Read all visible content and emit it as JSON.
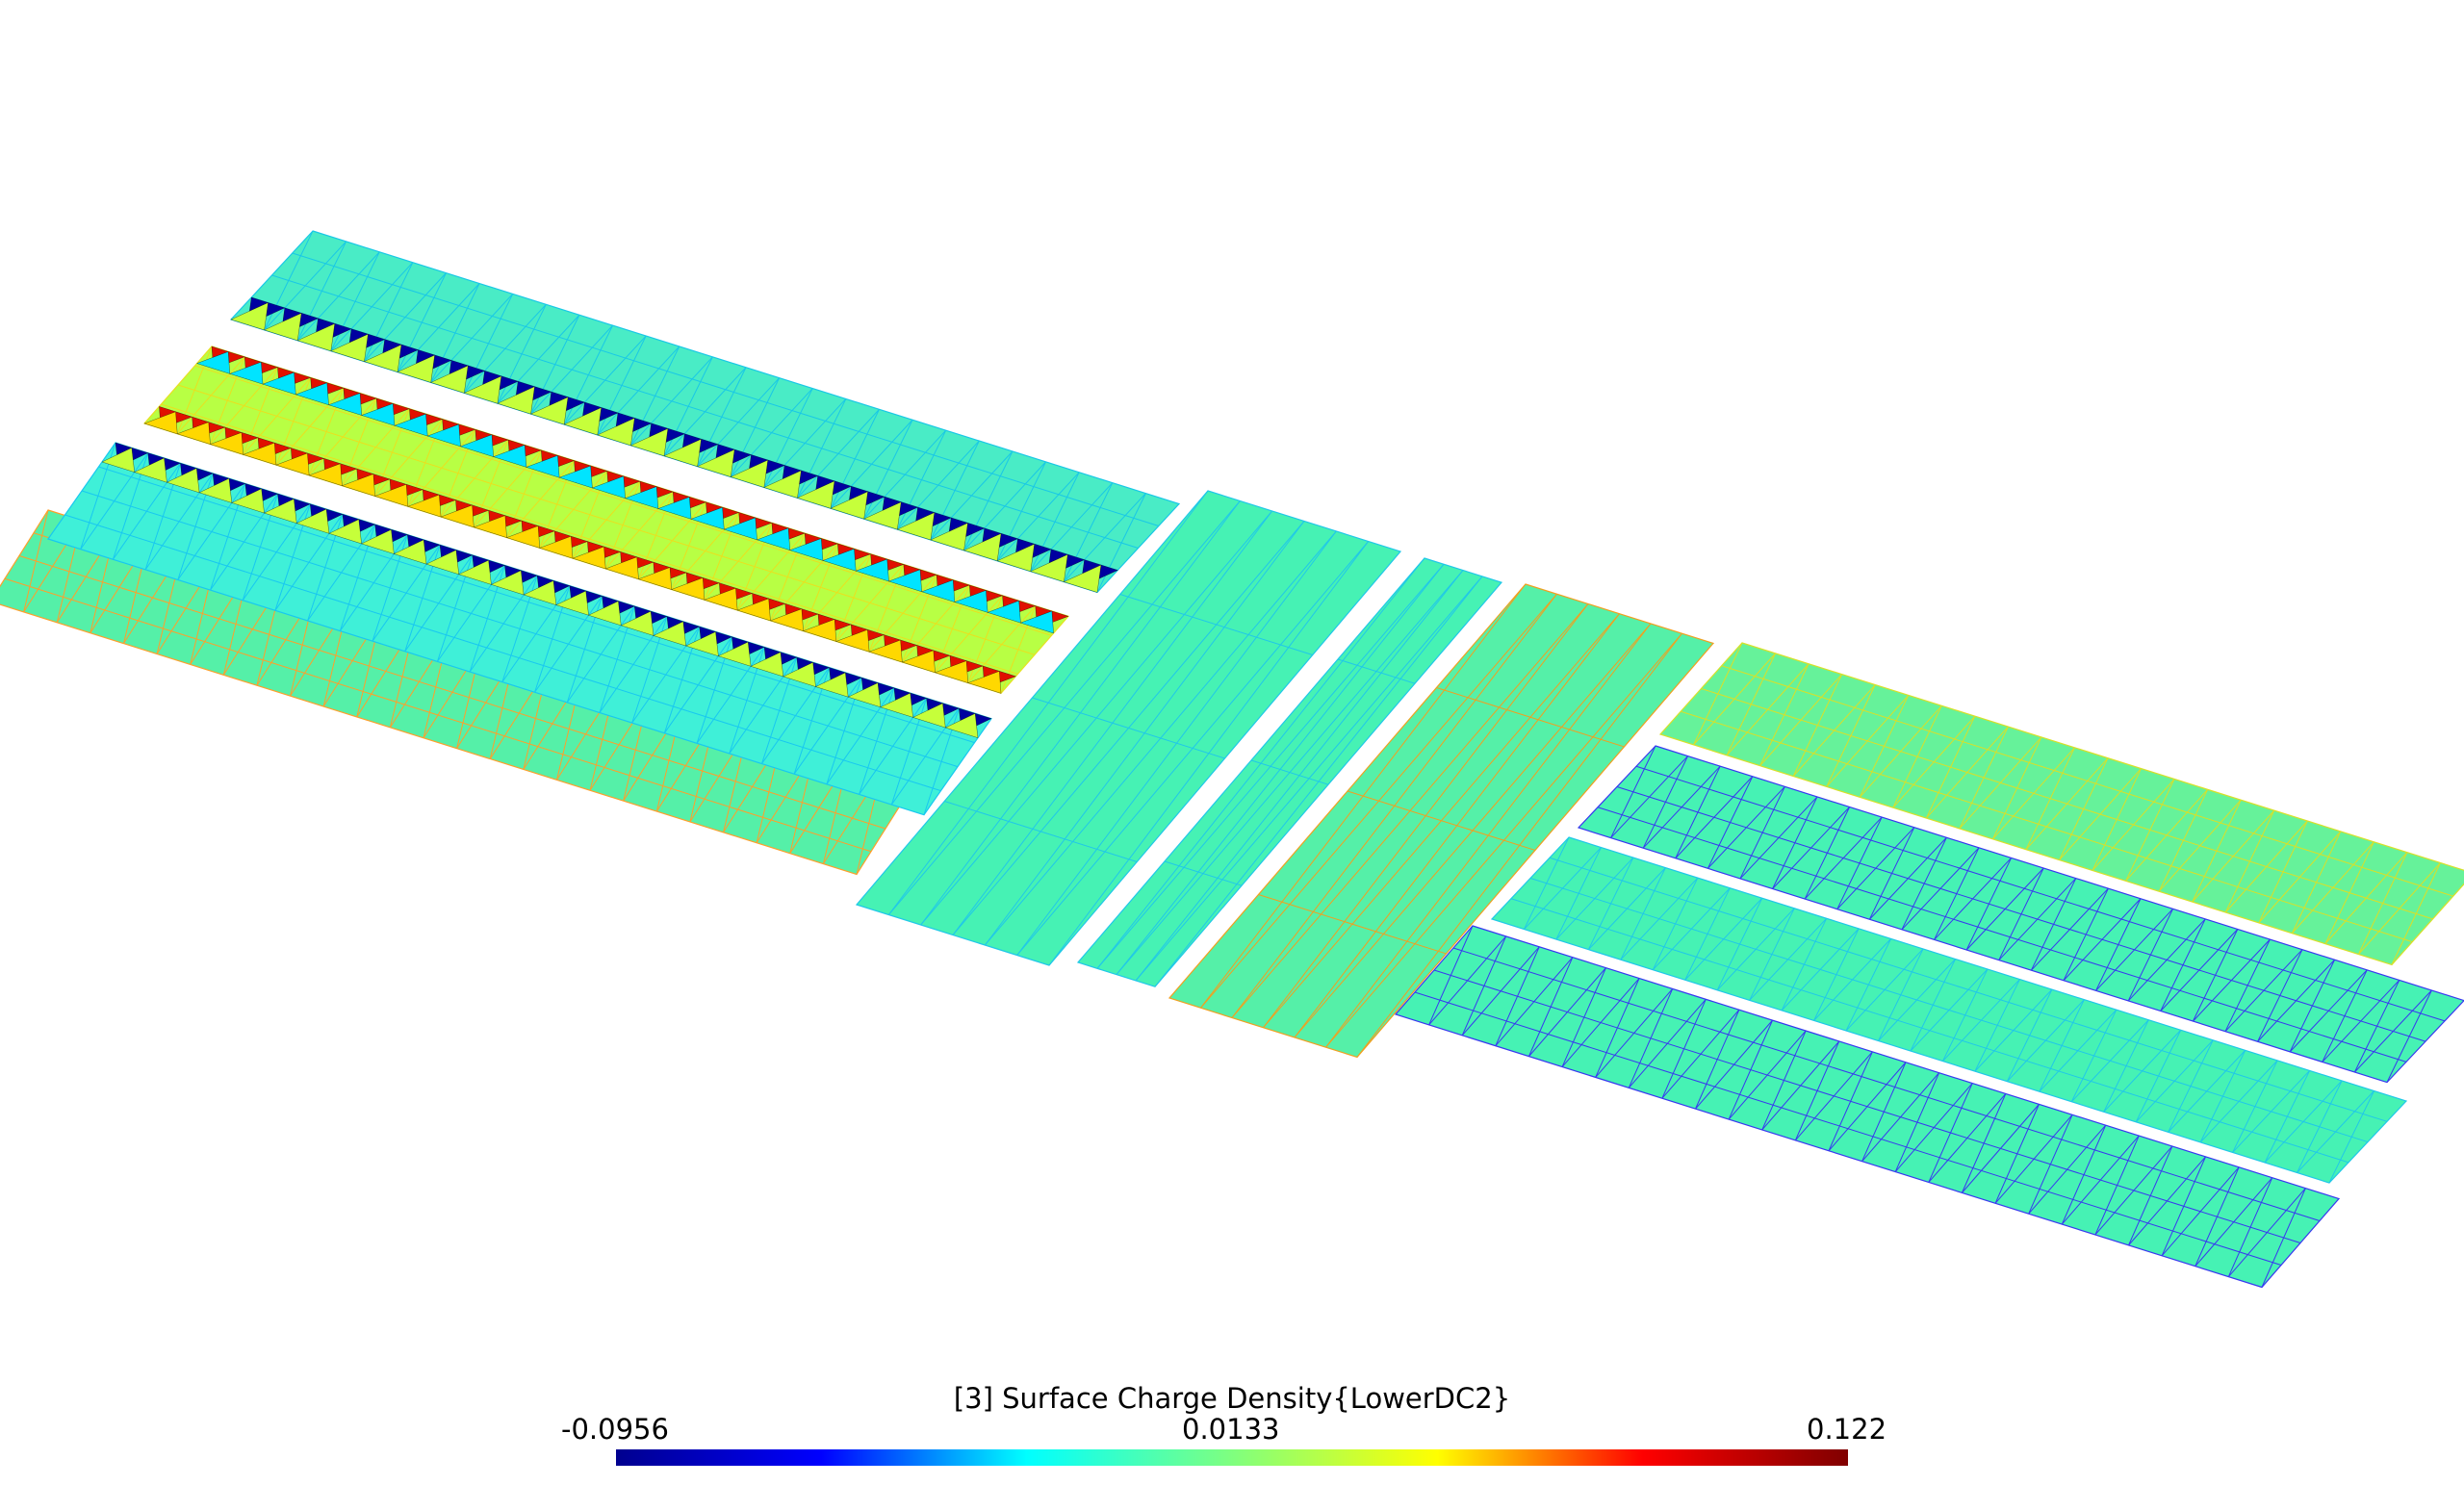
{
  "colorbar": {
    "title": "[3] Surface Charge Density{LowerDC2}",
    "min_label": "-0.0956",
    "mid_label": "0.0133",
    "max_label": "0.122",
    "min": -0.0956,
    "max": 0.122,
    "colormap": "jet",
    "gradient_stops": [
      "#00008f",
      "#0000ff",
      "#00ffff",
      "#7fff7f",
      "#ffff00",
      "#ff0000",
      "#800000"
    ]
  },
  "scene": {
    "background": "#ffffff",
    "regions": [
      {
        "id": "left-outer-electrode",
        "fill": "#55f0a8",
        "edge": "#ff9f2a"
      },
      {
        "id": "left-dc-top",
        "fill": "#49ecc6",
        "edge": "#19c8e6"
      },
      {
        "id": "left-dc-middle",
        "fill": "#b8ff44",
        "edge": "#e8e020"
      },
      {
        "id": "left-dc-lower",
        "fill": "#3ff0d8",
        "edge": "#18c8f0"
      },
      {
        "id": "junction-slab-1",
        "fill": "#46f2b4",
        "edge": "#20c8e8"
      },
      {
        "id": "junction-slab-2",
        "fill": "#46f2b4",
        "edge": "#20c8e8"
      },
      {
        "id": "junction-slab-3",
        "fill": "#55f0a8",
        "edge": "#f0a020"
      },
      {
        "id": "right-top-electrode",
        "fill": "#66f29a",
        "edge": "#d8e028"
      },
      {
        "id": "right-dc-1",
        "fill": "#46f2b4",
        "edge": "#3838f0"
      },
      {
        "id": "right-dc-2",
        "fill": "#46f2b4",
        "edge": "#20c8e8"
      },
      {
        "id": "right-dc-3",
        "fill": "#46f2b4",
        "edge": "#3838f0"
      }
    ]
  }
}
